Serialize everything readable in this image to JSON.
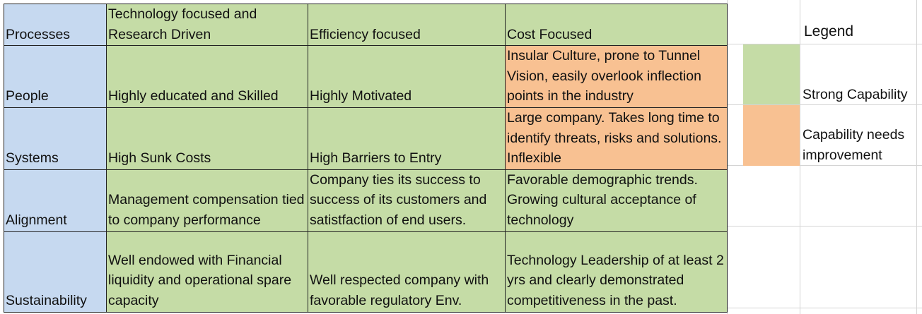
{
  "rows": [
    {
      "label": "Processes",
      "cells": [
        {
          "text": "Technology focused and Research Driven",
          "status": "strong"
        },
        {
          "text": "Efficiency focused",
          "status": "strong"
        },
        {
          "text": "Cost Focused",
          "status": "strong"
        }
      ]
    },
    {
      "label": "People",
      "cells": [
        {
          "text": "Highly educated and Skilled",
          "status": "strong"
        },
        {
          "text": "Highly Motivated",
          "status": "strong"
        },
        {
          "text": "Insular Culture, prone to Tunnel Vision, easily overlook inflection points in the industry",
          "status": "needs-improvement"
        }
      ]
    },
    {
      "label": "Systems",
      "cells": [
        {
          "text": "High Sunk Costs",
          "status": "strong"
        },
        {
          "text": "High Barriers to Entry",
          "status": "strong"
        },
        {
          "text": "Large company. Takes long time to identify threats, risks and solutions. Inflexible",
          "status": "needs-improvement"
        }
      ]
    },
    {
      "label": "Alignment",
      "cells": [
        {
          "text": "Management compensation tied to company performance",
          "status": "strong"
        },
        {
          "text": "Company ties its success to success of its customers and satistfaction of end users.",
          "status": "strong"
        },
        {
          "text": "Favorable demographic trends. Growing cultural acceptance of technology",
          "status": "strong"
        }
      ]
    },
    {
      "label": "Sustainability",
      "cells": [
        {
          "text": "Well endowed with Financial liquidity and operational spare capacity",
          "status": "strong"
        },
        {
          "text": "Well respected company with favorable regulatory Env.",
          "status": "strong"
        },
        {
          "text": "Technology Leadership of at least 2 yrs and clearly demonstrated competitiveness in the past.",
          "status": "strong"
        }
      ]
    }
  ],
  "legend": {
    "title": "Legend",
    "items": [
      {
        "label": "Strong Capability",
        "color": "#c5dca6"
      },
      {
        "label": "Capability needs improvement",
        "color": "#f8c192"
      }
    ]
  },
  "colors": {
    "row_label_bg": "#c6d9f0",
    "strong": "#c5dca6",
    "needs_improvement": "#f8c192"
  }
}
